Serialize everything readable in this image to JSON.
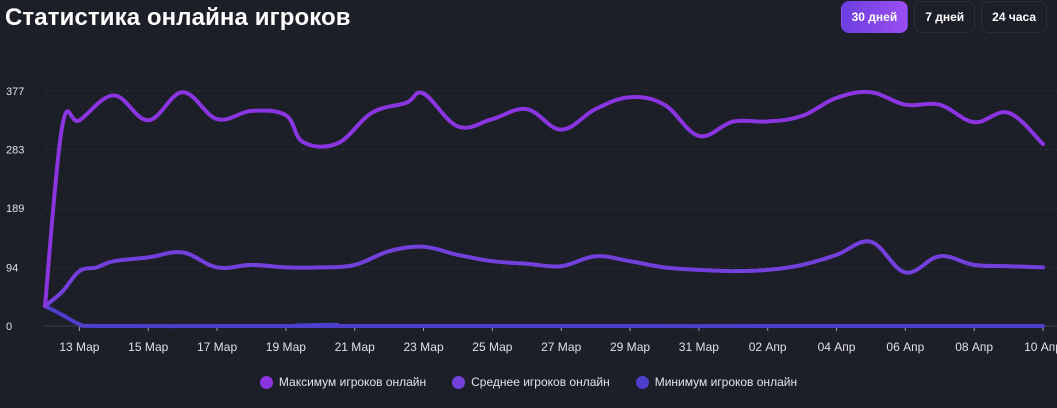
{
  "title": "Статистика онлайна игроков",
  "tabs": [
    {
      "label": "30 дней",
      "active": true
    },
    {
      "label": "7 дней",
      "active": false
    },
    {
      "label": "24 часа",
      "active": false
    }
  ],
  "chart_data": {
    "type": "line",
    "x_ticks": [
      "13 Мар",
      "15 Мар",
      "17 Мар",
      "19 Мар",
      "21 Мар",
      "23 Мар",
      "25 Мар",
      "27 Мар",
      "29 Мар",
      "31 Мар",
      "02 Апр",
      "04 Апр",
      "06 Апр",
      "08 Апр",
      "10 Апр"
    ],
    "y_ticks": [
      0,
      94,
      189,
      283,
      377
    ],
    "ylim": [
      0,
      377
    ],
    "grid": true,
    "legend_position": "bottom",
    "series": [
      {
        "name": "Максимум игроков онлайн",
        "color": "#8a35e0",
        "points": [
          [
            0,
            32
          ],
          [
            1,
            320
          ],
          [
            2,
            330
          ],
          [
            4,
            370
          ],
          [
            6,
            330
          ],
          [
            8,
            375
          ],
          [
            10,
            332
          ],
          [
            12,
            345
          ],
          [
            14,
            338
          ],
          [
            15,
            295
          ],
          [
            17,
            293
          ],
          [
            19,
            342
          ],
          [
            21,
            358
          ],
          [
            22,
            373
          ],
          [
            24,
            320
          ],
          [
            26,
            332
          ],
          [
            28,
            348
          ],
          [
            30,
            315
          ],
          [
            32,
            348
          ],
          [
            34,
            367
          ],
          [
            36,
            355
          ],
          [
            38,
            305
          ],
          [
            40,
            328
          ],
          [
            42,
            328
          ],
          [
            44,
            337
          ],
          [
            46,
            366
          ],
          [
            48,
            375
          ],
          [
            50,
            355
          ],
          [
            52,
            355
          ],
          [
            54,
            327
          ],
          [
            56,
            342
          ],
          [
            58,
            292
          ]
        ]
      },
      {
        "name": "Среднее игроков онлайн",
        "color": "#7440dc",
        "points": [
          [
            0,
            32
          ],
          [
            1,
            55
          ],
          [
            2,
            88
          ],
          [
            3,
            94
          ],
          [
            4,
            104
          ],
          [
            6,
            110
          ],
          [
            8,
            118
          ],
          [
            10,
            94
          ],
          [
            12,
            98
          ],
          [
            14,
            94
          ],
          [
            16,
            94
          ],
          [
            18,
            98
          ],
          [
            20,
            120
          ],
          [
            22,
            127
          ],
          [
            24,
            114
          ],
          [
            26,
            104
          ],
          [
            28,
            100
          ],
          [
            30,
            96
          ],
          [
            32,
            112
          ],
          [
            34,
            104
          ],
          [
            36,
            94
          ],
          [
            38,
            90
          ],
          [
            40,
            88
          ],
          [
            42,
            90
          ],
          [
            44,
            98
          ],
          [
            46,
            114
          ],
          [
            48,
            135
          ],
          [
            50,
            86
          ],
          [
            52,
            112
          ],
          [
            54,
            98
          ],
          [
            56,
            96
          ],
          [
            58,
            94
          ]
        ]
      },
      {
        "name": "Минимум игроков онлайн",
        "color": "#4b3fcc",
        "points": [
          [
            0,
            32
          ],
          [
            1,
            18
          ],
          [
            2,
            3
          ],
          [
            3,
            0
          ],
          [
            10,
            0
          ],
          [
            16,
            0
          ],
          [
            17,
            2
          ],
          [
            18,
            0
          ],
          [
            58,
            0
          ]
        ]
      }
    ]
  }
}
